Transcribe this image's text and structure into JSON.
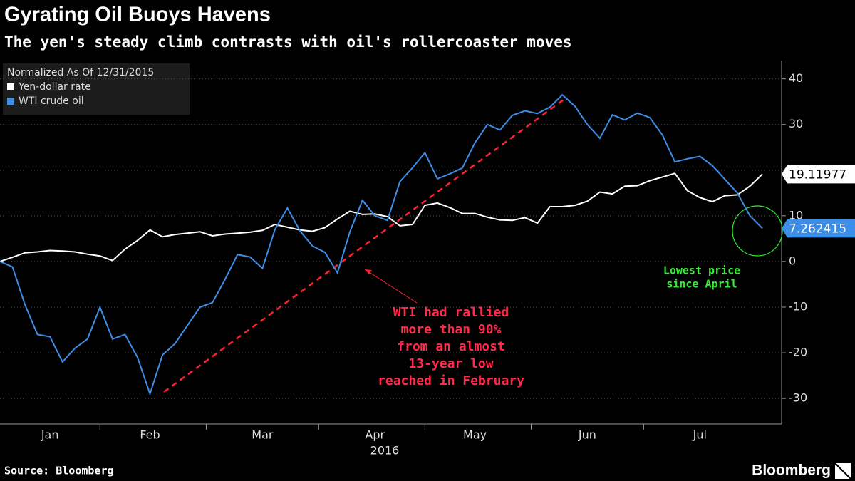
{
  "chart_data": {
    "type": "line",
    "title": "Gyrating Oil Buoys Havens",
    "subtitle": "The yen's steady climb contrasts with oil's rollercoaster moves",
    "legend_title": "Normalized As Of 12/31/2015",
    "xlabel": "2016",
    "source": "Source: Bloomberg",
    "brand": "Bloomberg",
    "categories": [
      null,
      null,
      null,
      null,
      "Jan",
      null,
      null,
      null,
      null,
      null,
      null,
      null,
      "Feb",
      null,
      null,
      null,
      null,
      null,
      null,
      null,
      null,
      "Mar",
      null,
      null,
      null,
      null,
      null,
      null,
      null,
      null,
      "Apr",
      null,
      null,
      null,
      null,
      null,
      null,
      null,
      "May",
      null,
      null,
      null,
      null,
      null,
      null,
      null,
      null,
      "Jun",
      null,
      null,
      null,
      null,
      null,
      null,
      null,
      null,
      "Jul",
      null,
      null,
      null,
      null,
      null
    ],
    "series": [
      {
        "name": "Yen-dollar rate",
        "color": "#ffffff",
        "values": [
          0,
          0.9,
          1.9,
          2.1,
          2.4,
          2.3,
          2.1,
          1.6,
          1.2,
          0.2,
          2.7,
          4.6,
          6.9,
          5.4,
          5.9,
          6.2,
          6.5,
          5.6,
          6.0,
          6.2,
          6.4,
          6.8,
          8.1,
          7.5,
          6.9,
          6.6,
          7.4,
          9.3,
          11,
          10.3,
          10.4,
          9.8,
          7.8,
          8.1,
          12.3,
          12.8,
          11.8,
          10.5,
          10.5,
          9.7,
          9.1,
          9.0,
          9.6,
          8.4,
          12,
          12,
          12.3,
          13.2,
          15.2,
          14.8,
          16.5,
          16.6,
          17.7,
          18.5,
          19.3,
          15.5,
          14,
          13.1,
          14.4,
          14.6,
          16.5,
          19.11977
        ]
      },
      {
        "name": "WTI crude oil",
        "color": "#3d8ee6",
        "values": [
          0,
          -1.2,
          -9.5,
          -16,
          -16.5,
          -22,
          -19,
          -17,
          -10,
          -17,
          -16,
          -21,
          -29,
          -20.5,
          -18,
          -14,
          -10,
          -9,
          -4,
          1.5,
          1,
          -1.5,
          7,
          11.7,
          6.7,
          3.4,
          2,
          -2.5,
          6.5,
          13.4,
          10,
          9,
          17.5,
          20.5,
          23.8,
          18.1,
          19.2,
          20.5,
          26,
          30,
          28.8,
          32,
          33,
          32.4,
          33.8,
          36.5,
          34,
          30,
          27,
          32.1,
          31,
          32.5,
          31.5,
          27.7,
          21.8,
          22.5,
          23,
          21,
          18,
          15,
          10,
          7.262415
        ]
      }
    ],
    "ylim": [
      -35.6,
      44
    ],
    "yticks": [
      -30,
      -20,
      -10,
      0,
      10,
      20,
      30,
      40
    ],
    "grid": true,
    "annotations": [
      {
        "lines": [
          "WTI had rallied",
          "more than 90%",
          "from an almost",
          "13-year low",
          "reached in February"
        ],
        "color": "#ff2a4a"
      },
      {
        "lines": [
          "Lowest price",
          "since April"
        ],
        "color": "#33ee33"
      }
    ]
  }
}
